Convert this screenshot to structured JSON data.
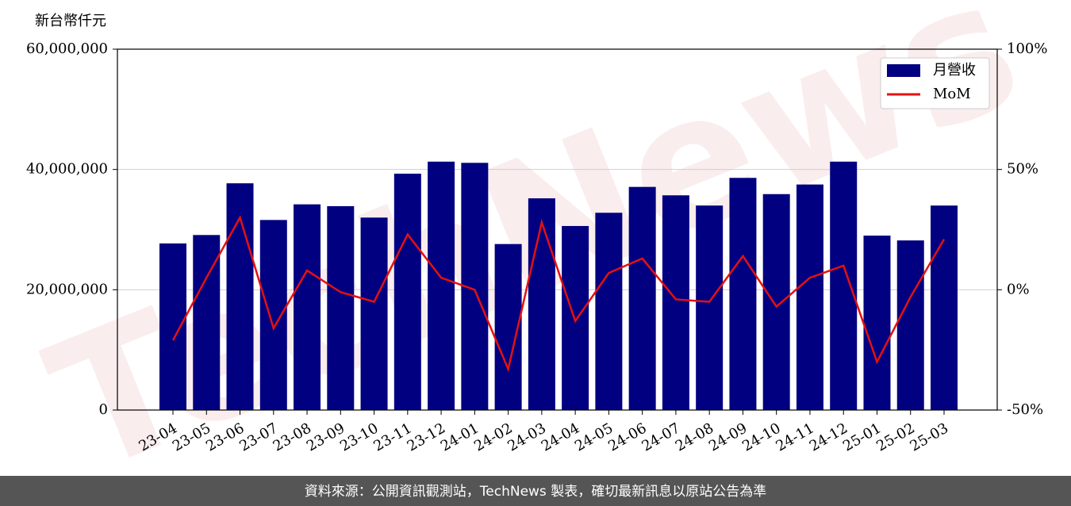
{
  "chart_data": {
    "type": "bar",
    "y_label": "新台幣仟元",
    "watermark": "TechNews",
    "footer": "資料來源：公開資訊觀測站，TechNews 製表，確切最新訊息以原站公告為準",
    "categories": [
      "23-04",
      "23-05",
      "23-06",
      "23-07",
      "23-08",
      "23-09",
      "23-10",
      "23-11",
      "23-12",
      "24-01",
      "24-02",
      "24-03",
      "24-04",
      "24-05",
      "24-06",
      "24-07",
      "24-08",
      "24-09",
      "24-10",
      "24-11",
      "24-12",
      "25-01",
      "25-02",
      "25-03"
    ],
    "series": [
      {
        "name": "月營收",
        "color": "#000080",
        "type": "bar",
        "values": [
          27700000,
          29100000,
          37700000,
          31600000,
          34200000,
          33900000,
          32000000,
          39300000,
          41300000,
          41100000,
          27600000,
          35200000,
          30600000,
          32800000,
          37100000,
          35700000,
          34000000,
          38600000,
          35900000,
          37500000,
          41300000,
          29000000,
          28200000,
          34000000
        ]
      },
      {
        "name": "MoM",
        "color": "#e51010",
        "type": "line",
        "axis": "y2",
        "values": [
          -21,
          5,
          30,
          -16,
          8,
          -1,
          -5,
          23,
          5,
          0,
          -33,
          28,
          -13,
          7,
          13,
          -4,
          -5,
          14,
          -7,
          5,
          10,
          -30,
          -3,
          21
        ]
      }
    ],
    "ylim": [
      0,
      60000000
    ],
    "yticks": [
      0,
      {
        "value": 20000000,
        "label": "20,000,000"
      },
      {
        "value": 40000000,
        "label": "40,000,000"
      },
      {
        "value": 60000000,
        "label": "60,000,000"
      }
    ],
    "y2lim": [
      -50,
      100
    ],
    "y2ticks": [
      {
        "value": -50,
        "label": "-50%"
      },
      {
        "value": 0,
        "label": "0%"
      },
      {
        "value": 50,
        "label": "50%"
      },
      {
        "value": 100,
        "label": "100%"
      }
    ],
    "grid": true,
    "legend": "upper-right"
  }
}
